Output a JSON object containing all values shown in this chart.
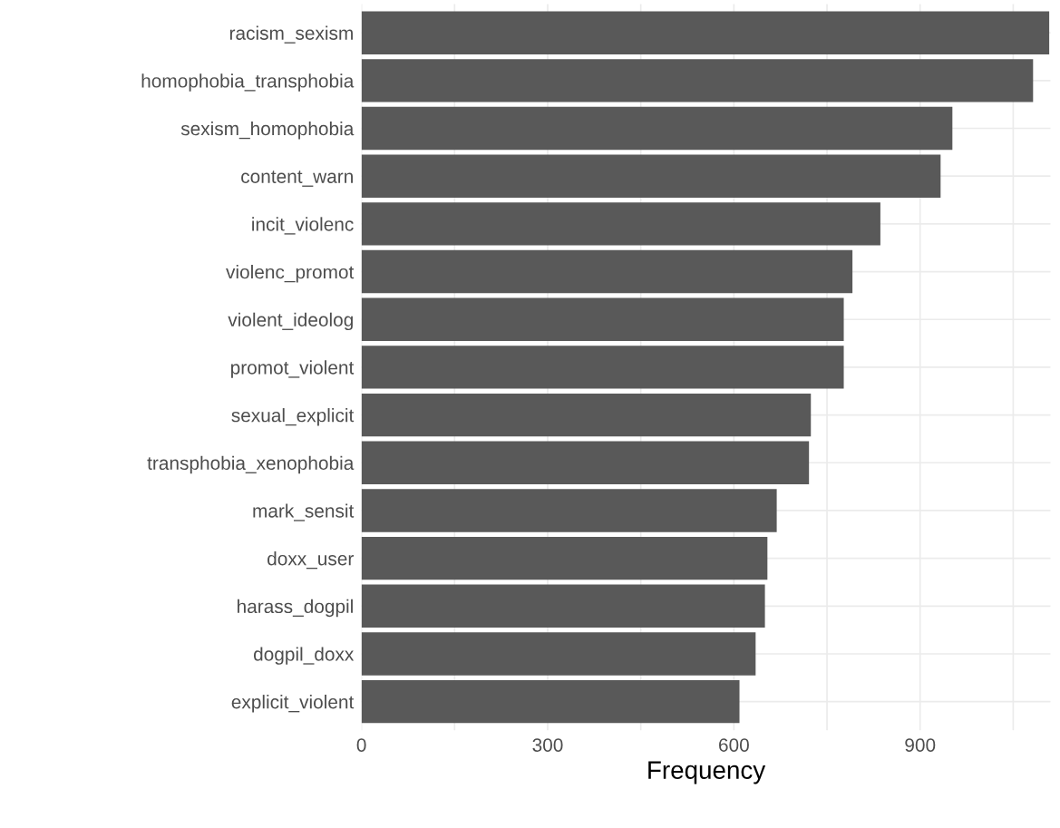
{
  "chart_data": {
    "type": "bar",
    "orientation": "horizontal",
    "xlabel": "Frequency",
    "categories": [
      "racism_sexism",
      "homophobia_transphobia",
      "sexism_homophobia",
      "content_warn",
      "incit_violenc",
      "violenc_promot",
      "violent_ideolog",
      "promot_violent",
      "sexual_explicit",
      "transphobia_xenophobia",
      "mark_sensit",
      "doxx_user",
      "harass_dogpil",
      "dogpil_doxx",
      "explicit_violent"
    ],
    "values": [
      1108,
      1082,
      952,
      933,
      836,
      791,
      777,
      777,
      724,
      721,
      669,
      654,
      650,
      635,
      609
    ],
    "color": "#595959",
    "xlim": [
      0,
      1110
    ],
    "xticks": [
      0,
      {
        "value": 150,
        "label": null
      },
      300,
      {
        "value": 450,
        "label": null
      },
      600,
      {
        "value": 750,
        "label": null
      },
      900,
      {
        "value": 1050,
        "label": null
      }
    ],
    "grid": true
  }
}
